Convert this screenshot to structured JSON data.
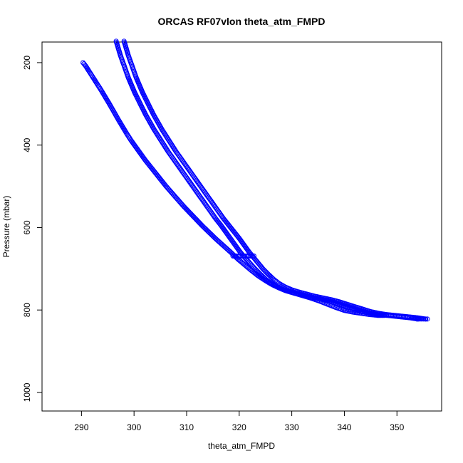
{
  "chart_data": {
    "type": "scatter",
    "title": "ORCAS RF07vlon theta_atm_FMPD",
    "xlabel": "theta_atm_FMPD",
    "ylabel": "Pressure (mbar)",
    "xlim": [
      282.5,
      358.5
    ],
    "ylim": [
      1045,
      150
    ],
    "y_reversed": true,
    "xticks": [
      290,
      300,
      310,
      320,
      330,
      340,
      350
    ],
    "yticks": [
      200,
      400,
      600,
      800,
      1000
    ],
    "grid": false,
    "legend": "none",
    "marker": "open-circle",
    "point_color": "#0000ff",
    "series": [
      {
        "points": [
          [
            290.3,
            200
          ],
          [
            290.8,
            208
          ],
          [
            291.5,
            222
          ],
          [
            292.3,
            238
          ],
          [
            293.0,
            252
          ],
          [
            293.8,
            268
          ],
          [
            294.6,
            285
          ],
          [
            295.4,
            302
          ],
          [
            296.2,
            320
          ],
          [
            297.0,
            338
          ],
          [
            297.8,
            355
          ],
          [
            298.6,
            372
          ],
          [
            299.4,
            388
          ],
          [
            300.3,
            404
          ],
          [
            301.2,
            420
          ],
          [
            302.1,
            436
          ],
          [
            303.1,
            452
          ],
          [
            304.1,
            468
          ],
          [
            305.1,
            484
          ],
          [
            306.1,
            500
          ],
          [
            307.2,
            516
          ],
          [
            308.3,
            532
          ],
          [
            309.4,
            548
          ],
          [
            310.6,
            564
          ],
          [
            311.8,
            580
          ],
          [
            313.0,
            596
          ],
          [
            314.3,
            612
          ],
          [
            315.6,
            628
          ],
          [
            317.0,
            644
          ],
          [
            318.4,
            660
          ],
          [
            319.7,
            676
          ],
          [
            321.0,
            690
          ],
          [
            322.3,
            704
          ],
          [
            323.6,
            717
          ],
          [
            324.9,
            728
          ],
          [
            326.2,
            738
          ],
          [
            327.5,
            746
          ],
          [
            328.8,
            753
          ],
          [
            330.4,
            759
          ],
          [
            332.0,
            765
          ],
          [
            333.6,
            771
          ],
          [
            335.2,
            778
          ],
          [
            336.8,
            786
          ],
          [
            338.4,
            794
          ],
          [
            340.0,
            801
          ],
          [
            341.6,
            805
          ],
          [
            343.2,
            808
          ],
          [
            344.8,
            811
          ],
          [
            346.4,
            813
          ],
          [
            347.5,
            813
          ]
        ]
      },
      {
        "points": [
          [
            298.1,
            148
          ],
          [
            298.5,
            165
          ],
          [
            298.9,
            182
          ],
          [
            299.4,
            200
          ],
          [
            299.9,
            218
          ],
          [
            300.4,
            236
          ],
          [
            301.0,
            254
          ],
          [
            301.6,
            272
          ],
          [
            302.3,
            290
          ],
          [
            303.0,
            308
          ],
          [
            303.7,
            326
          ],
          [
            304.5,
            344
          ],
          [
            305.3,
            362
          ],
          [
            306.2,
            380
          ],
          [
            307.1,
            398
          ],
          [
            308.0,
            416
          ],
          [
            309.0,
            434
          ],
          [
            310.0,
            452
          ],
          [
            311.0,
            470
          ],
          [
            312.0,
            488
          ],
          [
            313.0,
            506
          ],
          [
            314.0,
            524
          ],
          [
            315.0,
            542
          ],
          [
            316.0,
            560
          ],
          [
            317.0,
            578
          ],
          [
            318.0,
            594
          ],
          [
            319.0,
            610
          ],
          [
            320.0,
            626
          ],
          [
            320.9,
            642
          ],
          [
            321.8,
            658
          ],
          [
            322.7,
            672
          ],
          [
            323.6,
            686
          ],
          [
            324.5,
            700
          ],
          [
            325.5,
            713
          ],
          [
            326.5,
            725
          ],
          [
            327.5,
            735
          ],
          [
            328.7,
            744
          ],
          [
            330.0,
            751
          ],
          [
            331.5,
            757
          ],
          [
            333.0,
            762
          ],
          [
            334.5,
            767
          ],
          [
            336.0,
            771
          ],
          [
            337.5,
            775
          ],
          [
            339.0,
            780
          ],
          [
            340.5,
            786
          ],
          [
            342.0,
            792
          ],
          [
            343.5,
            798
          ],
          [
            345.0,
            804
          ],
          [
            346.5,
            808
          ],
          [
            348.0,
            811
          ],
          [
            349.5,
            813
          ],
          [
            351.0,
            815
          ],
          [
            352.5,
            817
          ],
          [
            354.0,
            819
          ],
          [
            355.5,
            822
          ]
        ]
      },
      {
        "points": [
          [
            296.6,
            148
          ],
          [
            297.0,
            165
          ],
          [
            297.4,
            182
          ],
          [
            297.9,
            200
          ],
          [
            298.4,
            218
          ],
          [
            298.9,
            236
          ],
          [
            299.5,
            254
          ],
          [
            300.1,
            272
          ],
          [
            300.8,
            290
          ],
          [
            301.5,
            308
          ],
          [
            302.2,
            326
          ],
          [
            303.0,
            344
          ],
          [
            303.8,
            362
          ],
          [
            304.7,
            380
          ],
          [
            305.6,
            398
          ],
          [
            306.5,
            416
          ],
          [
            307.5,
            434
          ],
          [
            308.5,
            452
          ],
          [
            309.5,
            470
          ],
          [
            310.5,
            488
          ],
          [
            311.5,
            506
          ],
          [
            312.5,
            524
          ],
          [
            313.5,
            542
          ],
          [
            314.5,
            560
          ],
          [
            315.5,
            578
          ],
          [
            316.5,
            594
          ],
          [
            317.4,
            610
          ],
          [
            318.3,
            626
          ],
          [
            319.2,
            642
          ],
          [
            320.1,
            658
          ],
          [
            321.0,
            672
          ],
          [
            322.0,
            686
          ],
          [
            323.0,
            700
          ],
          [
            324.0,
            713
          ],
          [
            325.0,
            725
          ],
          [
            326.0,
            735
          ],
          [
            327.2,
            744
          ],
          [
            328.5,
            751
          ],
          [
            330.0,
            757
          ],
          [
            331.5,
            762
          ],
          [
            333.0,
            767
          ],
          [
            334.5,
            771
          ],
          [
            336.0,
            775
          ],
          [
            337.5,
            780
          ],
          [
            339.0,
            786
          ],
          [
            340.5,
            792
          ],
          [
            342.0,
            798
          ],
          [
            343.5,
            804
          ],
          [
            345.0,
            808
          ],
          [
            346.5,
            811
          ],
          [
            348.0,
            813
          ],
          [
            349.5,
            815
          ],
          [
            351.0,
            817
          ],
          [
            352.5,
            819
          ],
          [
            354.0,
            822
          ]
        ]
      },
      {
        "points": [
          [
            318.8,
            669
          ],
          [
            319.3,
            669
          ],
          [
            319.8,
            669
          ],
          [
            320.3,
            669
          ],
          [
            320.8,
            669
          ],
          [
            321.3,
            669
          ],
          [
            321.8,
            669
          ],
          [
            322.3,
            669
          ],
          [
            322.8,
            669
          ]
        ]
      },
      {
        "points": [
          [
            353.8,
            822
          ],
          [
            354.2,
            822
          ],
          [
            354.6,
            822
          ],
          [
            355.0,
            822
          ],
          [
            355.4,
            822
          ],
          [
            355.8,
            822
          ],
          [
            346.4,
            813
          ],
          [
            346.8,
            813
          ],
          [
            347.2,
            813
          ],
          [
            347.6,
            813
          ]
        ]
      }
    ]
  }
}
